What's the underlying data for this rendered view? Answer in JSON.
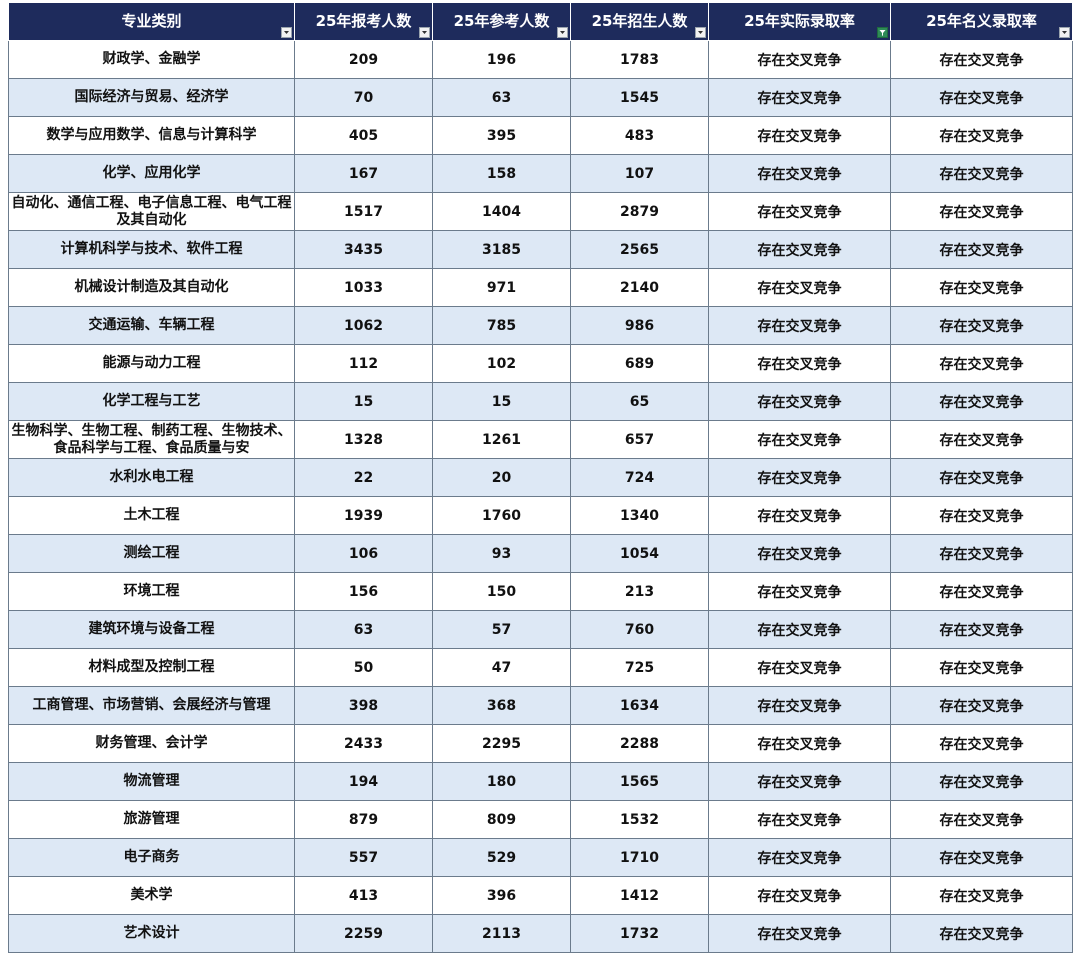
{
  "headers": [
    "专业类别",
    "25年报考人数",
    "25年参考人数",
    "25年招生人数",
    "25年实际录取率",
    "25年名义录取率"
  ],
  "active_filter_column": 4,
  "colors": {
    "header_bg": "#1e2b5c",
    "stripe": "#dde8f5",
    "filter_active": "#2e8b57"
  },
  "rows": [
    [
      "财政学、金融学",
      "209",
      "196",
      "1783",
      "存在交叉竞争",
      "存在交叉竞争"
    ],
    [
      "国际经济与贸易、经济学",
      "70",
      "63",
      "1545",
      "存在交叉竞争",
      "存在交叉竞争"
    ],
    [
      "数学与应用数学、信息与计算科学",
      "405",
      "395",
      "483",
      "存在交叉竞争",
      "存在交叉竞争"
    ],
    [
      "化学、应用化学",
      "167",
      "158",
      "107",
      "存在交叉竞争",
      "存在交叉竞争"
    ],
    [
      "自动化、通信工程、电子信息工程、电气工程及其自动化",
      "1517",
      "1404",
      "2879",
      "存在交叉竞争",
      "存在交叉竞争"
    ],
    [
      "计算机科学与技术、软件工程",
      "3435",
      "3185",
      "2565",
      "存在交叉竞争",
      "存在交叉竞争"
    ],
    [
      "机械设计制造及其自动化",
      "1033",
      "971",
      "2140",
      "存在交叉竞争",
      "存在交叉竞争"
    ],
    [
      "交通运输、车辆工程",
      "1062",
      "785",
      "986",
      "存在交叉竞争",
      "存在交叉竞争"
    ],
    [
      "能源与动力工程",
      "112",
      "102",
      "689",
      "存在交叉竞争",
      "存在交叉竞争"
    ],
    [
      "化学工程与工艺",
      "15",
      "15",
      "65",
      "存在交叉竞争",
      "存在交叉竞争"
    ],
    [
      "生物科学、生物工程、制药工程、生物技术、食品科学与工程、食品质量与安",
      "1328",
      "1261",
      "657",
      "存在交叉竞争",
      "存在交叉竞争"
    ],
    [
      "水利水电工程",
      "22",
      "20",
      "724",
      "存在交叉竞争",
      "存在交叉竞争"
    ],
    [
      "土木工程",
      "1939",
      "1760",
      "1340",
      "存在交叉竞争",
      "存在交叉竞争"
    ],
    [
      "测绘工程",
      "106",
      "93",
      "1054",
      "存在交叉竞争",
      "存在交叉竞争"
    ],
    [
      "环境工程",
      "156",
      "150",
      "213",
      "存在交叉竞争",
      "存在交叉竞争"
    ],
    [
      "建筑环境与设备工程",
      "63",
      "57",
      "760",
      "存在交叉竞争",
      "存在交叉竞争"
    ],
    [
      "材料成型及控制工程",
      "50",
      "47",
      "725",
      "存在交叉竞争",
      "存在交叉竞争"
    ],
    [
      "工商管理、市场营销、会展经济与管理",
      "398",
      "368",
      "1634",
      "存在交叉竞争",
      "存在交叉竞争"
    ],
    [
      "财务管理、会计学",
      "2433",
      "2295",
      "2288",
      "存在交叉竞争",
      "存在交叉竞争"
    ],
    [
      "物流管理",
      "194",
      "180",
      "1565",
      "存在交叉竞争",
      "存在交叉竞争"
    ],
    [
      "旅游管理",
      "879",
      "809",
      "1532",
      "存在交叉竞争",
      "存在交叉竞争"
    ],
    [
      "电子商务",
      "557",
      "529",
      "1710",
      "存在交叉竞争",
      "存在交叉竞争"
    ],
    [
      "美术学",
      "413",
      "396",
      "1412",
      "存在交叉竞争",
      "存在交叉竞争"
    ],
    [
      "艺术设计",
      "2259",
      "2113",
      "1732",
      "存在交叉竞争",
      "存在交叉竞争"
    ]
  ]
}
